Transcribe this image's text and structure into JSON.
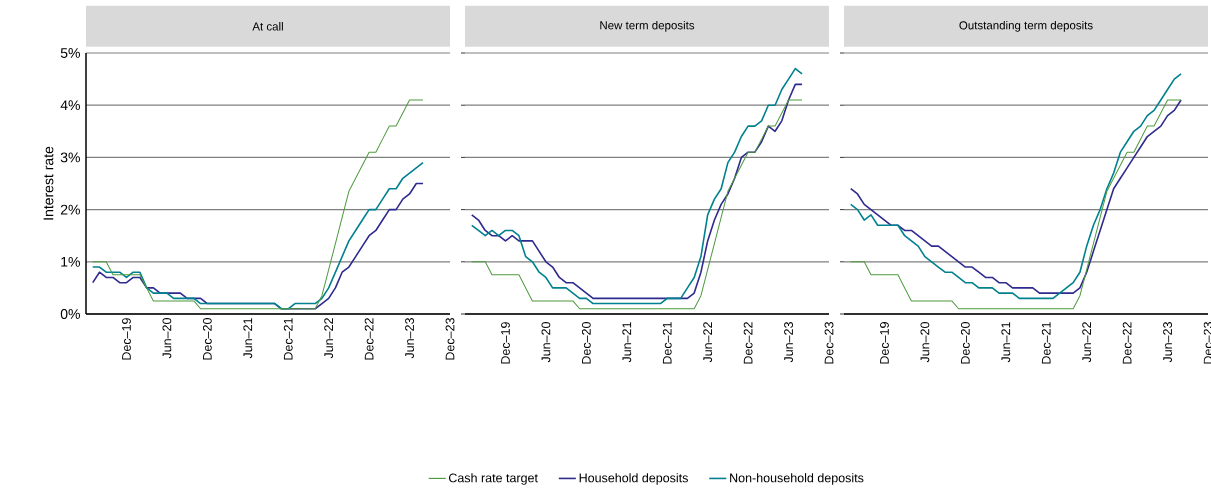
{
  "chart_data": [
    {
      "type": "line",
      "title": "At call",
      "ylabel": "Interest rate",
      "grid": "y",
      "legend": false,
      "x": [
        "2019-07",
        "2019-08",
        "2019-09",
        "2019-10",
        "2019-11",
        "2019-12",
        "2020-01",
        "2020-02",
        "2020-03",
        "2020-04",
        "2020-05",
        "2020-06",
        "2020-07",
        "2020-08",
        "2020-09",
        "2020-10",
        "2020-11",
        "2020-12",
        "2021-01",
        "2021-02",
        "2021-03",
        "2021-04",
        "2021-05",
        "2021-06",
        "2021-07",
        "2021-08",
        "2021-09",
        "2021-10",
        "2021-11",
        "2021-12",
        "2022-01",
        "2022-02",
        "2022-03",
        "2022-04",
        "2022-05",
        "2022-06",
        "2022-07",
        "2022-08",
        "2022-09",
        "2022-10",
        "2022-11",
        "2022-12",
        "2023-01",
        "2023-02",
        "2023-03",
        "2023-04",
        "2023-05",
        "2023-06",
        "2023-07",
        "2023-08"
      ],
      "xlim": [
        "2019-06",
        "2023-12"
      ],
      "xticks": [
        {
          "value": "2019-12",
          "label": "Dec–19"
        },
        {
          "value": "2020-06",
          "label": "Jun–20"
        },
        {
          "value": "2020-12",
          "label": "Dec–20"
        },
        {
          "value": "2021-06",
          "label": "Jun–21"
        },
        {
          "value": "2021-12",
          "label": "Dec–21"
        },
        {
          "value": "2022-06",
          "label": "Jun–22"
        },
        {
          "value": "2022-12",
          "label": "Dec–22"
        },
        {
          "value": "2023-06",
          "label": "Jun–23"
        },
        {
          "value": "2023-12",
          "label": "Dec–23"
        }
      ],
      "ylim": [
        0,
        5
      ],
      "yticks": [
        {
          "value": 0,
          "label": "0%"
        },
        {
          "value": 1,
          "label": "1%"
        },
        {
          "value": 2,
          "label": "2%"
        },
        {
          "value": 3,
          "label": "3%"
        },
        {
          "value": 4,
          "label": "4%"
        },
        {
          "value": 5,
          "label": "5%"
        }
      ],
      "series": [
        {
          "color": "#4e9a3e",
          "values": [
            1.0,
            1.0,
            1.0,
            0.75,
            0.75,
            0.75,
            0.75,
            0.75,
            0.5,
            0.25,
            0.25,
            0.25,
            0.25,
            0.25,
            0.25,
            0.25,
            0.1,
            0.1,
            0.1,
            0.1,
            0.1,
            0.1,
            0.1,
            0.1,
            0.1,
            0.1,
            0.1,
            0.1,
            0.1,
            0.1,
            0.1,
            0.1,
            0.1,
            0.1,
            0.35,
            0.85,
            1.35,
            1.85,
            2.35,
            2.6,
            2.85,
            3.1,
            3.1,
            3.35,
            3.6,
            3.6,
            3.85,
            4.1,
            4.1,
            4.1
          ]
        },
        {
          "color": "#2e2a8e",
          "values": [
            0.6,
            0.8,
            0.7,
            0.7,
            0.6,
            0.6,
            0.7,
            0.7,
            0.5,
            0.5,
            0.4,
            0.4,
            0.4,
            0.4,
            0.3,
            0.3,
            0.3,
            0.2,
            0.2,
            0.2,
            0.2,
            0.2,
            0.2,
            0.2,
            0.2,
            0.2,
            0.2,
            0.2,
            0.1,
            0.1,
            0.1,
            0.1,
            0.1,
            0.1,
            0.2,
            0.3,
            0.5,
            0.8,
            0.9,
            1.1,
            1.3,
            1.5,
            1.6,
            1.8,
            2.0,
            2.0,
            2.2,
            2.3,
            2.5,
            2.5
          ]
        },
        {
          "color": "#00818f",
          "values": [
            0.9,
            0.9,
            0.8,
            0.8,
            0.8,
            0.7,
            0.8,
            0.8,
            0.5,
            0.4,
            0.4,
            0.4,
            0.3,
            0.3,
            0.3,
            0.3,
            0.2,
            0.2,
            0.2,
            0.2,
            0.2,
            0.2,
            0.2,
            0.2,
            0.2,
            0.2,
            0.2,
            0.2,
            0.1,
            0.1,
            0.2,
            0.2,
            0.2,
            0.2,
            0.3,
            0.5,
            0.8,
            1.1,
            1.4,
            1.6,
            1.8,
            2.0,
            2.0,
            2.2,
            2.4,
            2.4,
            2.6,
            2.7,
            2.8,
            2.9
          ]
        }
      ]
    },
    {
      "type": "line",
      "title": "New term deposits",
      "grid": "y",
      "tick_labels": "x",
      "legend": "bottom",
      "x": [
        "2019-07",
        "2019-08",
        "2019-09",
        "2019-10",
        "2019-11",
        "2019-12",
        "2020-01",
        "2020-02",
        "2020-03",
        "2020-04",
        "2020-05",
        "2020-06",
        "2020-07",
        "2020-08",
        "2020-09",
        "2020-10",
        "2020-11",
        "2020-12",
        "2021-01",
        "2021-02",
        "2021-03",
        "2021-04",
        "2021-05",
        "2021-06",
        "2021-07",
        "2021-08",
        "2021-09",
        "2021-10",
        "2021-11",
        "2021-12",
        "2022-01",
        "2022-02",
        "2022-03",
        "2022-04",
        "2022-05",
        "2022-06",
        "2022-07",
        "2022-08",
        "2022-09",
        "2022-10",
        "2022-11",
        "2022-12",
        "2023-01",
        "2023-02",
        "2023-03",
        "2023-04",
        "2023-05",
        "2023-06",
        "2023-07",
        "2023-08"
      ],
      "xlim": [
        "2019-06",
        "2023-12"
      ],
      "xticks": [
        {
          "value": "2019-12",
          "label": "Dec–19"
        },
        {
          "value": "2020-06",
          "label": "Jun–20"
        },
        {
          "value": "2020-12",
          "label": "Dec–20"
        },
        {
          "value": "2021-06",
          "label": "Jun–21"
        },
        {
          "value": "2021-12",
          "label": "Dec–21"
        },
        {
          "value": "2022-06",
          "label": "Jun–22"
        },
        {
          "value": "2022-12",
          "label": "Dec–22"
        },
        {
          "value": "2023-06",
          "label": "Jun–23"
        },
        {
          "value": "2023-12",
          "label": "Dec–23"
        }
      ],
      "ylim": [
        0,
        5
      ],
      "yticks": [
        0,
        1,
        2,
        3,
        4,
        5
      ],
      "series": [
        {
          "name": "Cash rate target",
          "color": "#4e9a3e",
          "values": [
            1.0,
            1.0,
            1.0,
            0.75,
            0.75,
            0.75,
            0.75,
            0.75,
            0.5,
            0.25,
            0.25,
            0.25,
            0.25,
            0.25,
            0.25,
            0.25,
            0.1,
            0.1,
            0.1,
            0.1,
            0.1,
            0.1,
            0.1,
            0.1,
            0.1,
            0.1,
            0.1,
            0.1,
            0.1,
            0.1,
            0.1,
            0.1,
            0.1,
            0.1,
            0.35,
            0.85,
            1.35,
            1.85,
            2.35,
            2.6,
            2.85,
            3.1,
            3.1,
            3.35,
            3.6,
            3.6,
            3.85,
            4.1,
            4.1,
            4.1
          ]
        },
        {
          "name": "Household deposits",
          "color": "#2e2a8e",
          "values": [
            1.9,
            1.8,
            1.6,
            1.5,
            1.5,
            1.4,
            1.5,
            1.4,
            1.4,
            1.4,
            1.2,
            1.0,
            0.9,
            0.7,
            0.6,
            0.6,
            0.5,
            0.4,
            0.3,
            0.3,
            0.3,
            0.3,
            0.3,
            0.3,
            0.3,
            0.3,
            0.3,
            0.3,
            0.3,
            0.3,
            0.3,
            0.3,
            0.3,
            0.4,
            0.8,
            1.4,
            1.8,
            2.1,
            2.3,
            2.6,
            3.0,
            3.1,
            3.1,
            3.3,
            3.6,
            3.5,
            3.7,
            4.1,
            4.4,
            4.4
          ]
        },
        {
          "name": "Non-household deposits",
          "color": "#00818f",
          "values": [
            1.7,
            1.6,
            1.5,
            1.6,
            1.5,
            1.6,
            1.6,
            1.5,
            1.1,
            1.0,
            0.8,
            0.7,
            0.5,
            0.5,
            0.5,
            0.4,
            0.3,
            0.3,
            0.2,
            0.2,
            0.2,
            0.2,
            0.2,
            0.2,
            0.2,
            0.2,
            0.2,
            0.2,
            0.2,
            0.3,
            0.3,
            0.3,
            0.5,
            0.7,
            1.1,
            1.9,
            2.2,
            2.4,
            2.9,
            3.1,
            3.4,
            3.6,
            3.6,
            3.7,
            4.0,
            4.0,
            4.3,
            4.5,
            4.7,
            4.6
          ]
        }
      ]
    },
    {
      "type": "line",
      "title": "Outstanding term deposits",
      "grid": "y",
      "tick_labels": "x",
      "x": [
        "2019-07",
        "2019-08",
        "2019-09",
        "2019-10",
        "2019-11",
        "2019-12",
        "2020-01",
        "2020-02",
        "2020-03",
        "2020-04",
        "2020-05",
        "2020-06",
        "2020-07",
        "2020-08",
        "2020-09",
        "2020-10",
        "2020-11",
        "2020-12",
        "2021-01",
        "2021-02",
        "2021-03",
        "2021-04",
        "2021-05",
        "2021-06",
        "2021-07",
        "2021-08",
        "2021-09",
        "2021-10",
        "2021-11",
        "2021-12",
        "2022-01",
        "2022-02",
        "2022-03",
        "2022-04",
        "2022-05",
        "2022-06",
        "2022-07",
        "2022-08",
        "2022-09",
        "2022-10",
        "2022-11",
        "2022-12",
        "2023-01",
        "2023-02",
        "2023-03",
        "2023-04",
        "2023-05",
        "2023-06",
        "2023-07",
        "2023-08"
      ],
      "xlim": [
        "2019-06",
        "2023-12"
      ],
      "xticks": [
        {
          "value": "2019-12",
          "label": "Dec–19"
        },
        {
          "value": "2020-06",
          "label": "Jun–20"
        },
        {
          "value": "2020-12",
          "label": "Dec–20"
        },
        {
          "value": "2021-06",
          "label": "Jun–21"
        },
        {
          "value": "2021-12",
          "label": "Dec–21"
        },
        {
          "value": "2022-06",
          "label": "Jun–22"
        },
        {
          "value": "2022-12",
          "label": "Dec–22"
        },
        {
          "value": "2023-06",
          "label": "Jun–23"
        },
        {
          "value": "2023-12",
          "label": "Dec–23"
        }
      ],
      "ylim": [
        0,
        5
      ],
      "yticks": [
        0,
        1,
        2,
        3,
        4,
        5
      ],
      "series": [
        {
          "color": "#4e9a3e",
          "values": [
            1.0,
            1.0,
            1.0,
            0.75,
            0.75,
            0.75,
            0.75,
            0.75,
            0.5,
            0.25,
            0.25,
            0.25,
            0.25,
            0.25,
            0.25,
            0.25,
            0.1,
            0.1,
            0.1,
            0.1,
            0.1,
            0.1,
            0.1,
            0.1,
            0.1,
            0.1,
            0.1,
            0.1,
            0.1,
            0.1,
            0.1,
            0.1,
            0.1,
            0.1,
            0.35,
            0.85,
            1.35,
            1.85,
            2.35,
            2.6,
            2.85,
            3.1,
            3.1,
            3.35,
            3.6,
            3.6,
            3.85,
            4.1,
            4.1,
            4.1
          ]
        },
        {
          "color": "#2e2a8e",
          "values": [
            2.4,
            2.3,
            2.1,
            2.0,
            1.9,
            1.8,
            1.7,
            1.7,
            1.6,
            1.6,
            1.5,
            1.4,
            1.3,
            1.3,
            1.2,
            1.1,
            1.0,
            0.9,
            0.9,
            0.8,
            0.7,
            0.7,
            0.6,
            0.6,
            0.5,
            0.5,
            0.5,
            0.5,
            0.4,
            0.4,
            0.4,
            0.4,
            0.4,
            0.4,
            0.5,
            0.8,
            1.2,
            1.6,
            2.0,
            2.4,
            2.6,
            2.8,
            3.0,
            3.2,
            3.4,
            3.5,
            3.6,
            3.8,
            3.9,
            4.1
          ]
        },
        {
          "color": "#00818f",
          "values": [
            2.1,
            2.0,
            1.8,
            1.9,
            1.7,
            1.7,
            1.7,
            1.7,
            1.5,
            1.4,
            1.3,
            1.1,
            1.0,
            0.9,
            0.8,
            0.8,
            0.7,
            0.6,
            0.6,
            0.5,
            0.5,
            0.5,
            0.4,
            0.4,
            0.4,
            0.3,
            0.3,
            0.3,
            0.3,
            0.3,
            0.3,
            0.4,
            0.5,
            0.6,
            0.8,
            1.3,
            1.7,
            2.0,
            2.4,
            2.7,
            3.1,
            3.3,
            3.5,
            3.6,
            3.8,
            3.9,
            4.1,
            4.3,
            4.5,
            4.6
          ]
        }
      ]
    }
  ]
}
